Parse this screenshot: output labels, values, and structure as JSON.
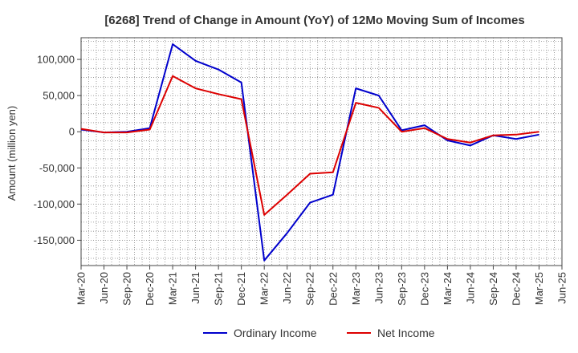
{
  "chart_data": {
    "type": "line",
    "title": "[6268]  Trend of Change in Amount (YoY) of 12Mo Moving Sum of Incomes",
    "ylabel": "Amount (million yen)",
    "xlabel": "",
    "ylim": [
      -185000,
      130000
    ],
    "yticks": [
      100000,
      50000,
      0,
      -50000,
      -100000,
      -150000
    ],
    "ytick_labels": [
      "100,000",
      "50,000",
      "0",
      "-50,000",
      "-100,000",
      "-150,000"
    ],
    "categories": [
      "Mar-20",
      "Jun-20",
      "Sep-20",
      "Dec-20",
      "Mar-21",
      "Jun-21",
      "Sep-21",
      "Dec-21",
      "Mar-22",
      "Jun-22",
      "Sep-22",
      "Dec-22",
      "Mar-23",
      "Jun-23",
      "Sep-23",
      "Dec-23",
      "Mar-24",
      "Jun-24",
      "Sep-24",
      "Dec-24",
      "Mar-25",
      "Jun-25"
    ],
    "grid": true,
    "legend_position": "bottom",
    "series": [
      {
        "name": "Ordinary Income",
        "color": "#0000cc",
        "values": [
          3000,
          -1000,
          0,
          5000,
          121000,
          98000,
          86000,
          68000,
          -178000,
          -140000,
          -98000,
          -87000,
          60000,
          50000,
          2000,
          9000,
          -12000,
          -19000,
          -5000,
          -10000,
          -4000,
          null
        ]
      },
      {
        "name": "Net Income",
        "color": "#dd0000",
        "values": [
          4000,
          -1000,
          -1000,
          3000,
          77000,
          60000,
          52000,
          45000,
          -115000,
          -87000,
          -58000,
          -56000,
          40000,
          33000,
          0,
          5000,
          -10000,
          -15000,
          -5000,
          -4000,
          0,
          null
        ]
      }
    ]
  }
}
